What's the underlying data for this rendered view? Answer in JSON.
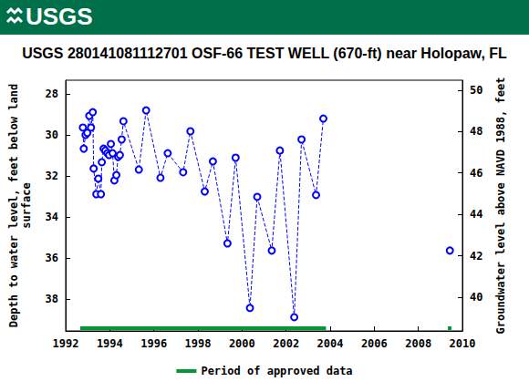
{
  "logo": "USGS",
  "chart_data": {
    "type": "scatter",
    "title": "USGS 280141081112701 OSF-66 TEST WELL (670-ft) near Holopaw, FL",
    "ylabel": "Depth to water level, feet below land\nsurface",
    "y2label": "Groundwater level above NAVD 1988, feet",
    "x": [
      1992.78,
      1992.82,
      1992.9,
      1992.98,
      1993.07,
      1993.15,
      1993.23,
      1993.27,
      1993.39,
      1993.48,
      1993.6,
      1993.64,
      1993.72,
      1993.8,
      1993.89,
      1993.97,
      1994.05,
      1994.13,
      1994.21,
      1994.3,
      1994.38,
      1994.46,
      1994.54,
      1994.62,
      1995.32,
      1995.65,
      1996.3,
      1996.63,
      1997.33,
      1997.66,
      1998.31,
      1998.68,
      1999.34,
      1999.71,
      2000.36,
      2000.69,
      2001.35,
      2001.72,
      2002.37,
      2002.7,
      2003.36,
      2003.69,
      null,
      2009.43
    ],
    "series": [
      {
        "color": "#0000ff",
        "marker": "emptyCircle",
        "line_style": "dashed",
        "values": [
          29.64,
          30.67,
          30.0,
          29.9,
          29.07,
          29.64,
          28.89,
          31.64,
          32.89,
          32.13,
          32.89,
          31.33,
          30.67,
          30.76,
          30.89,
          30.98,
          30.44,
          30.89,
          32.22,
          31.96,
          31.07,
          30.98,
          30.22,
          29.33,
          31.69,
          28.8,
          32.09,
          30.89,
          31.82,
          29.82,
          32.76,
          31.29,
          35.29,
          31.11,
          38.44,
          33.02,
          35.64,
          30.76,
          38.89,
          30.22,
          32.93,
          29.2,
          null,
          35.64
        ]
      },
      {
        "name": "Period of approved data",
        "type": "period",
        "color": "#009933",
        "periods": [
          [
            1992.66,
            2003.81
          ],
          [
            2009.34,
            2009.5
          ]
        ]
      }
    ],
    "xlim": [
      1992,
      2010
    ],
    "xticks": [
      1992,
      1994,
      1996,
      1998,
      2000,
      2002,
      2004,
      2006,
      2008,
      2010
    ],
    "ylim": [
      39.56,
      27.33
    ],
    "yticks": [
      28,
      30,
      32,
      34,
      36,
      38
    ],
    "y2lim": [
      38.37,
      50.48
    ],
    "y2ticks": [
      40,
      42,
      44,
      46,
      48,
      50
    ],
    "legend": "bottom",
    "grid": false
  }
}
